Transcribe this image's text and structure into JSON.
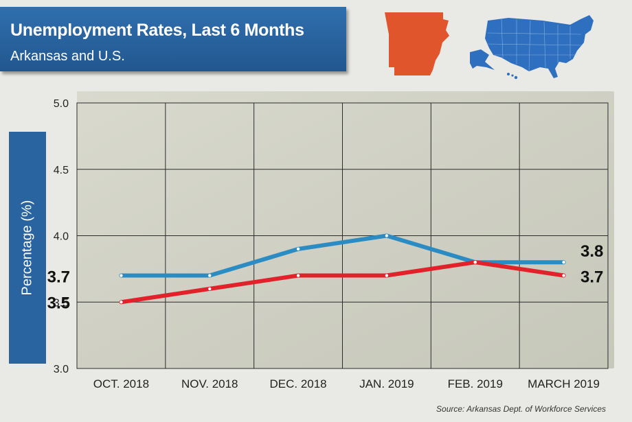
{
  "header": {
    "title": "Unemployment Rates, Last 6 Months",
    "subtitle": "Arkansas and U.S."
  },
  "icons": {
    "state_map": "arkansas-map-icon",
    "us_map": "us-map-icon"
  },
  "colors": {
    "banner": "#2a64a0",
    "arkansas_line": "#e1222b",
    "us_line": "#2b8cc4",
    "arkansas_map": "#e0552b",
    "us_map": "#2e6fc0"
  },
  "source": "Source: Arkansas Dept. of Workforce Services",
  "chart_data": {
    "type": "line",
    "title": "Unemployment Rates, Last 6 Months",
    "subtitle": "Arkansas and U.S.",
    "xlabel": "",
    "ylabel": "Percentage (%)",
    "categories": [
      "OCT. 2018",
      "NOV. 2018",
      "DEC. 2018",
      "JAN. 2019",
      "FEB. 2019",
      "MARCH 2019"
    ],
    "ylim": [
      3.0,
      5.0
    ],
    "yticks": [
      "3.0",
      "3.5",
      "4.0",
      "4.5",
      "5.0"
    ],
    "grid": true,
    "series": [
      {
        "values": [
          3.7,
          3.7,
          3.9,
          4.0,
          3.8,
          3.8
        ],
        "color": "#2b8cc4"
      },
      {
        "values": [
          3.5,
          3.6,
          3.7,
          3.7,
          3.8,
          3.7
        ],
        "color": "#e1222b"
      }
    ],
    "annotations": [
      {
        "text": "3.7",
        "series": 0,
        "index": 0
      },
      {
        "text": "3.5",
        "series": 1,
        "index": 0
      },
      {
        "text": "3.8",
        "series": 0,
        "index": 5
      },
      {
        "text": "3.7",
        "series": 1,
        "index": 5
      }
    ]
  }
}
